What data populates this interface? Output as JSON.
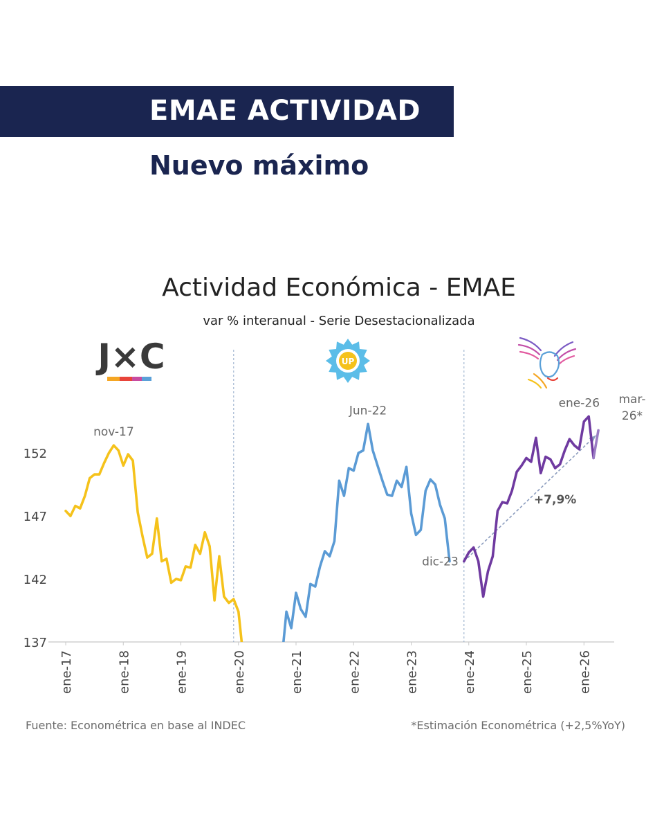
{
  "header": {
    "title": "EMAE ACTIVIDAD",
    "subtitle": "Nuevo máximo"
  },
  "colors": {
    "navy": "#1a2550",
    "jxc_yellow": "#f5c21b",
    "up_blue": "#5b9bd5",
    "lla_purple": "#6f3aa0",
    "estimate_purple": "#9b7cc4",
    "trend_gray": "#8a9bbd",
    "divider": "#8fa8c8",
    "label_gray": "#666666"
  },
  "logos": {
    "jxc_text": "J×C",
    "up_text": "UP",
    "lla_icon": "eagle-icon"
  },
  "chart_data": {
    "type": "line",
    "title": "Actividad Económica - EMAE",
    "subtitle": "var % interanual - Serie Desestacionalizada",
    "ylim": [
      137,
      158
    ],
    "yticks": [
      137,
      142,
      147,
      152
    ],
    "xlim": [
      0,
      112
    ],
    "xticks": [
      {
        "label": "ene-17",
        "x": 0
      },
      {
        "label": "ene-18",
        "x": 12
      },
      {
        "label": "ene-19",
        "x": 24
      },
      {
        "label": "ene-20",
        "x": 36
      },
      {
        "label": "ene-21",
        "x": 48
      },
      {
        "label": "ene-22",
        "x": 60
      },
      {
        "label": "ene-23",
        "x": 72
      },
      {
        "label": "ene-24",
        "x": 84
      },
      {
        "label": "ene-25",
        "x": 96
      },
      {
        "label": "ene-26",
        "x": 108
      }
    ],
    "dividers": [
      35,
      83
    ],
    "series": [
      {
        "key": "jxc",
        "color": "#f5c21b",
        "start": 0,
        "values": [
          147.4,
          147.0,
          147.8,
          147.6,
          148.6,
          150.0,
          150.3,
          150.3,
          151.2,
          152.0,
          152.6,
          152.2,
          151.0,
          151.9,
          151.4,
          147.3,
          145.4,
          143.7,
          144.0,
          146.8,
          143.4,
          143.6,
          141.7,
          142.0,
          141.9,
          143.0,
          142.9,
          144.7,
          144.0,
          145.7,
          144.6,
          140.3,
          143.8,
          140.6,
          140.1,
          140.4,
          139.4,
          135.8
        ]
      },
      {
        "key": "up",
        "color": "#5b9bd5",
        "start": 45,
        "values": [
          135.5,
          139.4,
          138.1,
          140.9,
          139.6,
          139.0,
          141.6,
          141.4,
          143.0,
          144.2,
          143.8,
          145.0,
          149.8,
          148.6,
          150.8,
          150.6,
          152.0,
          152.2,
          154.3,
          152.2,
          151.0,
          149.8,
          148.7,
          148.6,
          149.8,
          149.3,
          150.9,
          147.2,
          145.5,
          145.9,
          149.0,
          149.9,
          149.5,
          147.9,
          146.8,
          143.4
        ]
      },
      {
        "key": "lla",
        "color": "#6f3aa0",
        "start": 83,
        "values": [
          143.4,
          144.1,
          144.5,
          143.4,
          140.6,
          142.6,
          143.8,
          147.4,
          148.1,
          148.0,
          149.0,
          150.5,
          151.0,
          151.6,
          151.3,
          153.2,
          150.4,
          151.7,
          151.5,
          150.8,
          151.1,
          152.2,
          153.1,
          152.6,
          152.3,
          154.5,
          154.9,
          151.6
        ]
      }
    ],
    "estimate": {
      "x": [
        110,
        111
      ],
      "values": [
        151.6,
        153.8
      ],
      "color": "#9b7cc4"
    },
    "trendline": {
      "x": [
        83,
        110.5
      ],
      "values": [
        143.4,
        153.4
      ],
      "color": "#8a9bbd"
    },
    "annotations": [
      {
        "text": "nov-17",
        "x": 10,
        "y": 152.6,
        "place": "above"
      },
      {
        "text": "Jun-22",
        "x": 63,
        "y": 154.3,
        "place": "above"
      },
      {
        "text": "dic-23",
        "x": 83,
        "y": 143.4,
        "place": "left"
      },
      {
        "text": "ene-26",
        "x": 107,
        "y": 154.9,
        "place": "above"
      },
      {
        "text": "+7,9%",
        "x": 102,
        "y": 148.0,
        "place": "center"
      }
    ],
    "estimate_label_lines": [
      "mar-",
      "26*"
    ],
    "source_left": "Fuente: Econométrica en base al INDEC",
    "source_right": "*Estimación Econométrica (+2,5%YoY)"
  }
}
